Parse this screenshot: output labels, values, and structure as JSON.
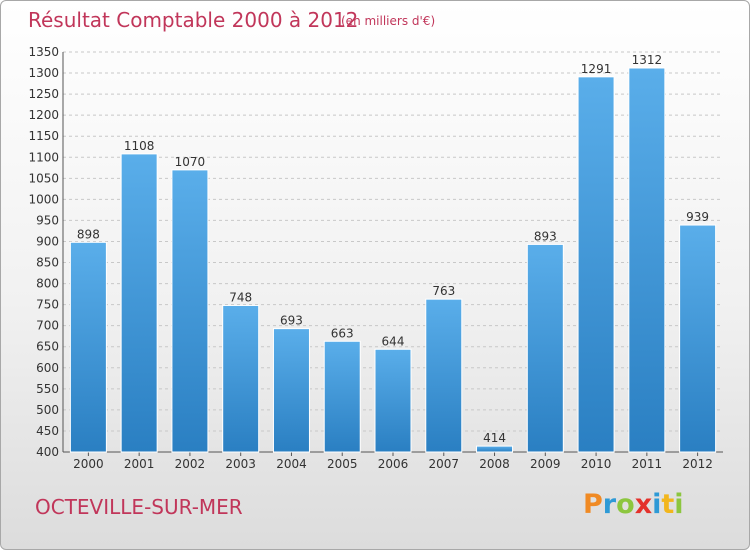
{
  "title": "Résultat Comptable 2000 à 2012",
  "subtitle": "(en milliers d'€)",
  "town": "OCTEVILLE-SUR-MER",
  "logo": {
    "letters": [
      "P",
      "r",
      "o",
      "x",
      "i",
      "t",
      "i"
    ],
    "colors": [
      "#f08a24",
      "#2e9ad6",
      "#8cc63f",
      "#e4312b",
      "#2e9ad6",
      "#f2b61d",
      "#8cc63f"
    ]
  },
  "colors": {
    "bar_top": "#5aaeea",
    "bar_bottom": "#2a7fc2",
    "grid": "#c8c8c8",
    "text_accent": "#c1365a"
  },
  "chart_data": {
    "type": "bar",
    "title": "Résultat Comptable 2000 à 2012",
    "subtitle": "(en milliers d'€)",
    "categories": [
      "2000",
      "2001",
      "2002",
      "2003",
      "2004",
      "2005",
      "2006",
      "2007",
      "2008",
      "2009",
      "2010",
      "2011",
      "2012"
    ],
    "values": [
      898,
      1108,
      1070,
      748,
      693,
      663,
      644,
      763,
      414,
      893,
      1291,
      1312,
      939
    ],
    "data_labels": [
      "898",
      "1108",
      "1070",
      "748",
      "693",
      "663",
      "644",
      "763",
      "414",
      "893",
      "1291",
      "1312",
      "939"
    ],
    "ylim": [
      400,
      1350
    ],
    "yticks": [
      400,
      450,
      500,
      550,
      600,
      650,
      700,
      750,
      800,
      850,
      900,
      950,
      1000,
      1050,
      1100,
      1150,
      1200,
      1250,
      1300,
      1350
    ],
    "grid": "horizontal, dashed",
    "xlabel": "",
    "ylabel": ""
  }
}
